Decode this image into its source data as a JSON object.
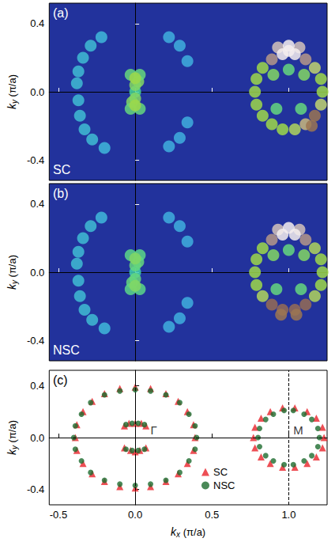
{
  "chart_data": [
    {
      "type": "intensity_map",
      "panel": "(a)",
      "label": "SC",
      "ylabel": "ky (π/a)",
      "xlim": [
        -0.56,
        1.25
      ],
      "ylim": [
        -0.52,
        0.52
      ],
      "xticks": [
        -0.5,
        {
          "value": 0,
          "label": "0.0"
        },
        0.5,
        {
          "value": 1,
          "label": "1.0"
        }
      ],
      "yticks": [
        -0.4,
        {
          "value": 0,
          "label": "0.0"
        },
        0.4
      ],
      "tick_labels": "y",
      "intensity_range": [
        0,
        1
      ],
      "colors": [
        "#22329c",
        "#3a6fd0",
        "#3fb6e0",
        "#3fd6a0",
        "#9ed84a",
        "#d9cf8a",
        "#8b5e44",
        "#f4eeee"
      ],
      "spots": [
        [
          -0.38,
          0.05,
          0.2
        ],
        [
          -0.37,
          0.12,
          0.2
        ],
        [
          -0.34,
          0.2,
          0.2
        ],
        [
          -0.29,
          0.27,
          0.2
        ],
        [
          -0.22,
          0.32,
          0.18
        ],
        [
          -0.37,
          -0.05,
          0.2
        ],
        [
          -0.36,
          -0.14,
          0.2
        ],
        [
          -0.33,
          -0.22,
          0.2
        ],
        [
          -0.28,
          -0.28,
          0.2
        ],
        [
          -0.2,
          -0.33,
          0.18
        ],
        [
          0.22,
          0.32,
          0.15
        ],
        [
          0.29,
          0.27,
          0.15
        ],
        [
          0.34,
          0.18,
          0.15
        ],
        [
          0.22,
          -0.32,
          0.15
        ],
        [
          0.29,
          -0.27,
          0.15
        ],
        [
          0.34,
          -0.18,
          0.15
        ],
        [
          0,
          0,
          0.35
        ],
        [
          0,
          0.04,
          0.45
        ],
        [
          0,
          -0.04,
          0.45
        ],
        [
          0.02,
          0.06,
          0.45
        ],
        [
          -0.02,
          -0.06,
          0.45
        ],
        [
          -0.03,
          0.1,
          0.4
        ],
        [
          0.03,
          0.1,
          0.4
        ],
        [
          -0.03,
          -0.1,
          0.4
        ],
        [
          0.03,
          -0.1,
          0.4
        ],
        [
          0,
          0.08,
          0.5
        ],
        [
          0,
          -0.08,
          0.5
        ],
        [
          0.9,
          0.1,
          0.45
        ],
        [
          1.0,
          0.13,
          0.4
        ],
        [
          1.1,
          0.1,
          0.45
        ],
        [
          0.92,
          -0.1,
          0.4
        ],
        [
          1.08,
          -0.1,
          0.4
        ],
        [
          1.22,
          0.0,
          0.5
        ],
        [
          1.21,
          0.075,
          0.5
        ],
        [
          1.17,
          0.14,
          0.6
        ],
        [
          0.83,
          0.14,
          0.5
        ],
        [
          0.79,
          0.075,
          0.5
        ],
        [
          0.78,
          0.0,
          0.5
        ],
        [
          0.79,
          -0.075,
          0.5
        ],
        [
          0.83,
          -0.14,
          0.5
        ],
        [
          0.89,
          -0.19,
          0.5
        ],
        [
          0.96,
          -0.22,
          0.5
        ],
        [
          1.04,
          -0.22,
          0.55
        ],
        [
          1.21,
          -0.075,
          0.6
        ],
        [
          1.11,
          -0.19,
          0.7
        ],
        [
          1.17,
          -0.14,
          0.8
        ],
        [
          1.15,
          -0.2,
          0.8
        ],
        [
          1.11,
          0.19,
          0.9
        ],
        [
          0.89,
          0.19,
          0.9
        ],
        [
          0.93,
          0.26,
          0.95
        ],
        [
          1.07,
          0.26,
          0.95
        ],
        [
          1.04,
          0.22,
          1.0
        ],
        [
          0.96,
          0.22,
          1.0
        ],
        [
          1.0,
          0.27,
          1.0
        ],
        [
          1.0,
          0.24,
          1.0
        ]
      ]
    },
    {
      "type": "intensity_map",
      "panel": "(b)",
      "label": "NSC",
      "ylabel": "ky (π/a)",
      "xlim": [
        -0.56,
        1.25
      ],
      "ylim": [
        -0.52,
        0.52
      ],
      "xticks": [
        -0.5,
        {
          "value": 0,
          "label": "0.0"
        },
        0.5,
        {
          "value": 1,
          "label": "1.0"
        }
      ],
      "yticks": [
        -0.4,
        {
          "value": 0,
          "label": "0.0"
        },
        0.4
      ],
      "tick_labels": "y",
      "intensity_range": [
        0,
        1
      ],
      "colors": [
        "#22329c",
        "#3a6fd0",
        "#3fb6e0",
        "#3fd6a0",
        "#9ed84a",
        "#d9cf8a",
        "#8b5e44",
        "#f4eeee"
      ],
      "spots": [
        [
          -0.38,
          0.05,
          0.2
        ],
        [
          -0.37,
          0.12,
          0.2
        ],
        [
          -0.34,
          0.2,
          0.2
        ],
        [
          -0.29,
          0.27,
          0.2
        ],
        [
          -0.22,
          0.32,
          0.18
        ],
        [
          -0.37,
          -0.05,
          0.2
        ],
        [
          -0.36,
          -0.14,
          0.2
        ],
        [
          -0.33,
          -0.22,
          0.2
        ],
        [
          -0.28,
          -0.28,
          0.2
        ],
        [
          -0.2,
          -0.33,
          0.18
        ],
        [
          0.22,
          0.32,
          0.15
        ],
        [
          0.29,
          0.27,
          0.15
        ],
        [
          0.34,
          0.18,
          0.15
        ],
        [
          0.22,
          -0.32,
          0.15
        ],
        [
          0.29,
          -0.27,
          0.15
        ],
        [
          0.34,
          -0.18,
          0.15
        ],
        [
          0,
          0,
          0.3
        ],
        [
          0,
          0.04,
          0.4
        ],
        [
          0,
          -0.04,
          0.4
        ],
        [
          0.02,
          0.06,
          0.4
        ],
        [
          -0.02,
          -0.06,
          0.4
        ],
        [
          -0.03,
          0.1,
          0.38
        ],
        [
          0.03,
          0.1,
          0.38
        ],
        [
          -0.03,
          -0.1,
          0.38
        ],
        [
          0.03,
          -0.1,
          0.38
        ],
        [
          0,
          0.08,
          0.45
        ],
        [
          0,
          -0.08,
          0.45
        ],
        [
          0.9,
          0.1,
          0.45
        ],
        [
          1.0,
          0.13,
          0.4
        ],
        [
          1.1,
          0.1,
          0.45
        ],
        [
          0.92,
          -0.1,
          0.4
        ],
        [
          1.08,
          -0.1,
          0.4
        ],
        [
          1.22,
          0.0,
          0.5
        ],
        [
          1.21,
          0.075,
          0.5
        ],
        [
          1.17,
          0.14,
          0.55
        ],
        [
          0.83,
          0.14,
          0.5
        ],
        [
          0.79,
          0.075,
          0.5
        ],
        [
          0.78,
          0.0,
          0.5
        ],
        [
          0.79,
          -0.075,
          0.5
        ],
        [
          0.83,
          -0.14,
          0.55
        ],
        [
          1.17,
          -0.14,
          0.55
        ],
        [
          1.21,
          -0.075,
          0.5
        ],
        [
          0.89,
          -0.19,
          0.85
        ],
        [
          0.96,
          -0.22,
          0.85
        ],
        [
          1.04,
          -0.22,
          0.85
        ],
        [
          1.11,
          -0.19,
          0.85
        ],
        [
          0.95,
          -0.25,
          0.8
        ],
        [
          1.05,
          -0.25,
          0.8
        ],
        [
          1.11,
          0.19,
          0.9
        ],
        [
          0.89,
          0.19,
          0.9
        ],
        [
          0.93,
          0.25,
          0.95
        ],
        [
          1.07,
          0.25,
          0.95
        ],
        [
          1.04,
          0.22,
          1.0
        ],
        [
          0.96,
          0.22,
          1.0
        ],
        [
          1.0,
          0.26,
          1.0
        ]
      ]
    },
    {
      "type": "scatter",
      "panel": "(c)",
      "xlabel": "kx (π/a)",
      "ylabel": "ky (π/a)",
      "xlim": [
        -0.56,
        1.25
      ],
      "ylim": [
        -0.52,
        0.52
      ],
      "xticks": [
        -0.5,
        {
          "value": 0,
          "label": "0.0"
        },
        0.5,
        {
          "value": 1,
          "label": "1.0"
        }
      ],
      "yticks": [
        -0.4,
        {
          "value": 0,
          "label": "0.0"
        },
        0.4
      ],
      "legend": "bottom",
      "reference_lines": {
        "x": [
          0,
          1
        ],
        "y": [
          0
        ]
      },
      "annotations": [
        {
          "text": "Γ",
          "x": 0.1,
          "y": 0.015
        },
        {
          "text": "M",
          "x": 1.03,
          "y": 0.015
        }
      ],
      "series": [
        {
          "name": "SC",
          "color": "#e8232a",
          "marker": "triangle",
          "points": [
            [
              0.39,
              0.0
            ],
            [
              0.38,
              0.1
            ],
            [
              0.34,
              0.2
            ],
            [
              0.28,
              0.28
            ],
            [
              0.2,
              0.34
            ],
            [
              0.1,
              0.38
            ],
            [
              0.0,
              0.39
            ],
            [
              -0.1,
              0.38
            ],
            [
              -0.2,
              0.34
            ],
            [
              -0.28,
              0.28
            ],
            [
              -0.34,
              0.2
            ],
            [
              -0.38,
              0.1
            ],
            [
              -0.39,
              0.0
            ],
            [
              -0.38,
              -0.1
            ],
            [
              -0.34,
              -0.2
            ],
            [
              -0.28,
              -0.28
            ],
            [
              -0.2,
              -0.34
            ],
            [
              -0.1,
              -0.38
            ],
            [
              0.0,
              -0.39
            ],
            [
              0.1,
              -0.38
            ],
            [
              0.2,
              -0.34
            ],
            [
              0.28,
              -0.28
            ],
            [
              0.34,
              -0.2
            ],
            [
              0.38,
              -0.1
            ],
            [
              -0.07,
              0.09
            ],
            [
              -0.04,
              0.11
            ],
            [
              0.0,
              0.11
            ],
            [
              0.04,
              0.11
            ],
            [
              0.07,
              0.09
            ],
            [
              -0.07,
              -0.08
            ],
            [
              -0.03,
              -0.1
            ],
            [
              0.0,
              -0.11
            ],
            [
              0.03,
              -0.1
            ],
            [
              0.07,
              -0.08
            ],
            [
              1.23,
              0.0
            ],
            [
              1.22,
              0.08
            ],
            [
              1.18,
              0.15
            ],
            [
              1.12,
              0.2
            ],
            [
              1.04,
              0.23
            ],
            [
              0.96,
              0.23
            ],
            [
              0.88,
              0.2
            ],
            [
              0.82,
              0.15
            ],
            [
              0.78,
              0.08
            ],
            [
              0.77,
              0.0
            ],
            [
              0.78,
              -0.08
            ],
            [
              0.82,
              -0.15
            ],
            [
              0.88,
              -0.2
            ],
            [
              0.96,
              -0.23
            ],
            [
              1.04,
              -0.23
            ],
            [
              1.12,
              -0.2
            ],
            [
              1.18,
              -0.15
            ],
            [
              1.22,
              -0.08
            ]
          ]
        },
        {
          "name": "NSC",
          "color": "#1d6b2e",
          "marker": "circle",
          "points": [
            [
              0.4,
              0.0
            ],
            [
              0.39,
              0.09
            ],
            [
              0.35,
              0.18
            ],
            [
              0.29,
              0.27
            ],
            [
              0.2,
              0.33
            ],
            [
              0.1,
              0.36
            ],
            [
              0.0,
              0.37
            ],
            [
              -0.1,
              0.36
            ],
            [
              -0.2,
              0.33
            ],
            [
              -0.29,
              0.27
            ],
            [
              -0.35,
              0.18
            ],
            [
              -0.39,
              0.09
            ],
            [
              -0.4,
              0.0
            ],
            [
              -0.39,
              -0.09
            ],
            [
              -0.35,
              -0.18
            ],
            [
              -0.29,
              -0.27
            ],
            [
              -0.2,
              -0.33
            ],
            [
              -0.1,
              -0.36
            ],
            [
              0.0,
              -0.37
            ],
            [
              0.1,
              -0.36
            ],
            [
              0.2,
              -0.33
            ],
            [
              0.29,
              -0.27
            ],
            [
              0.35,
              -0.18
            ],
            [
              0.39,
              -0.09
            ],
            [
              -0.06,
              0.1
            ],
            [
              -0.02,
              0.11
            ],
            [
              0.02,
              0.11
            ],
            [
              0.06,
              0.1
            ],
            [
              -0.06,
              -0.09
            ],
            [
              -0.02,
              -0.1
            ],
            [
              0.02,
              -0.1
            ],
            [
              0.06,
              -0.09
            ],
            [
              1.2,
              0.0
            ],
            [
              1.19,
              0.07
            ],
            [
              1.15,
              0.14
            ],
            [
              1.1,
              0.18
            ],
            [
              1.03,
              0.21
            ],
            [
              0.97,
              0.21
            ],
            [
              0.9,
              0.18
            ],
            [
              0.85,
              0.14
            ],
            [
              0.81,
              0.07
            ],
            [
              0.8,
              0.0
            ],
            [
              0.81,
              -0.07
            ],
            [
              0.85,
              -0.14
            ],
            [
              0.9,
              -0.18
            ],
            [
              0.97,
              -0.21
            ],
            [
              1.03,
              -0.21
            ],
            [
              1.1,
              -0.18
            ],
            [
              1.15,
              -0.14
            ],
            [
              1.19,
              -0.07
            ]
          ]
        }
      ]
    }
  ]
}
